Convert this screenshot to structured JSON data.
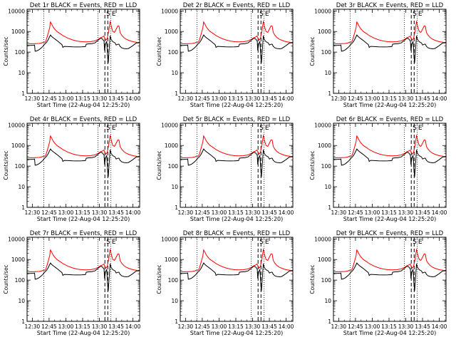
{
  "figure": {
    "xlabel": "Start Time (22-Aug-04 12:25:20)",
    "ylabel": "Counts/sec"
  },
  "chart_data": [
    {
      "type": "line",
      "title": "Det 1r BLACK = Events, RED = LLD",
      "dash_labels": [
        "S",
        "E"
      ]
    },
    {
      "type": "line",
      "title": "Det 2r BLACK = Events, RED = LLD",
      "dash_labels": [
        "S",
        "E"
      ]
    },
    {
      "type": "line",
      "title": "Det 3r BLACK = Events, RED = LLD",
      "dash_labels": [
        "S",
        "E"
      ]
    },
    {
      "type": "line",
      "title": "Det 4r BLACK = Events, RED = LLD",
      "dash_labels": [
        "S",
        "E"
      ]
    },
    {
      "type": "line",
      "title": "Det 5r BLACK = Events, RED = LLD",
      "dash_labels": [
        "S",
        "E"
      ]
    },
    {
      "type": "line",
      "title": "Det 6r BLACK = Events, RED = LLD",
      "dash_labels": [
        "S",
        "E"
      ]
    },
    {
      "type": "line",
      "title": "Det 7r BLACK = Events, RED = LLD",
      "dash_labels": [
        "S",
        "E"
      ]
    },
    {
      "type": "line",
      "title": "Det 8r BLACK = Events, RED = LLD",
      "dash_labels": [
        "S",
        "E"
      ]
    },
    {
      "type": "line",
      "title": "Det 9r BLACK = Events, RED = LLD",
      "dash_labels": [
        "S",
        "E"
      ]
    }
  ],
  "shared": {
    "x_ticks": [
      "12:30",
      "12:45",
      "13:00",
      "13:15",
      "13:30",
      "13:45",
      "14:00"
    ],
    "x_tick_minutes": [
      30,
      45,
      60,
      75,
      90,
      105,
      120
    ],
    "xlim_minutes": [
      25.3,
      126
    ],
    "y_scale": "log",
    "ylim": [
      1,
      12000
    ],
    "y_ticks": [
      "1",
      "10",
      "100",
      "1000",
      "10000"
    ],
    "y_tick_values": [
      1,
      10,
      100,
      1000,
      10000
    ],
    "dotted_lines_minutes": [
      40.2,
      88.7,
      100.3
    ],
    "dashed_lines_minutes": [
      94.9,
      97.5
    ],
    "red_color": "#ff0000",
    "black_color": "#000000",
    "series": [
      {
        "name": "LLD",
        "color": "#ff0000",
        "points": [
          [
            25.3,
            250
          ],
          [
            28,
            255
          ],
          [
            33,
            258
          ],
          [
            36,
            262
          ],
          [
            38,
            275
          ],
          [
            40,
            300
          ],
          [
            41.5,
            300
          ],
          [
            42.5,
            400
          ],
          [
            43.5,
            620
          ],
          [
            44.5,
            950
          ],
          [
            45.5,
            1500
          ],
          [
            46.2,
            2900
          ],
          [
            47,
            2500
          ],
          [
            48.5,
            1700
          ],
          [
            50,
            1300
          ],
          [
            52,
            1000
          ],
          [
            55,
            780
          ],
          [
            58,
            600
          ],
          [
            62,
            470
          ],
          [
            66,
            390
          ],
          [
            70,
            345
          ],
          [
            74,
            320
          ],
          [
            78,
            315
          ],
          [
            82,
            320
          ],
          [
            86,
            350
          ],
          [
            89,
            420
          ],
          [
            91,
            500
          ],
          [
            92.5,
            530
          ],
          [
            94,
            600
          ],
          [
            95.2,
            430
          ],
          [
            96,
            380
          ],
          [
            97,
            470
          ],
          [
            98.5,
            1200
          ],
          [
            99.6,
            3200
          ],
          [
            100.6,
            1800
          ],
          [
            102,
            1000
          ],
          [
            103.5,
            900
          ],
          [
            105,
            1300
          ],
          [
            106.5,
            1900
          ],
          [
            107.5,
            1800
          ],
          [
            108.5,
            900
          ],
          [
            110,
            650
          ],
          [
            112,
            500
          ],
          [
            114,
            420
          ],
          [
            117,
            360
          ],
          [
            120,
            320
          ],
          [
            123,
            300
          ],
          [
            126,
            280
          ]
        ]
      },
      {
        "name": "Events",
        "color": "#000000",
        "points": [
          [
            25.3,
            210
          ],
          [
            28,
            212
          ],
          [
            31,
            215
          ],
          [
            32,
            220
          ],
          [
            32.5,
            110
          ],
          [
            34,
            115
          ],
          [
            36,
            130
          ],
          [
            38,
            160
          ],
          [
            39.5,
            195
          ],
          [
            41,
            240
          ],
          [
            42.5,
            290
          ],
          [
            44,
            380
          ],
          [
            45.5,
            560
          ],
          [
            46.3,
            680
          ],
          [
            47,
            600
          ],
          [
            49,
            480
          ],
          [
            51,
            400
          ],
          [
            53,
            330
          ],
          [
            55,
            270
          ],
          [
            56.5,
            230
          ],
          [
            57.3,
            170
          ],
          [
            58.5,
            190
          ],
          [
            62,
            185
          ],
          [
            66,
            180
          ],
          [
            70,
            178
          ],
          [
            74,
            180
          ],
          [
            77.5,
            185
          ],
          [
            78.2,
            240
          ],
          [
            80,
            250
          ],
          [
            83,
            255
          ],
          [
            86,
            280
          ],
          [
            89,
            380
          ],
          [
            90.5,
            450
          ],
          [
            91.5,
            470
          ],
          [
            93,
            420
          ],
          [
            94.2,
            330
          ],
          [
            94.6,
            120
          ],
          [
            95.5,
            250
          ],
          [
            96.5,
            330
          ],
          [
            97,
            140
          ],
          [
            97.3,
            60
          ],
          [
            97.9,
            30
          ],
          [
            98.8,
            150
          ],
          [
            99.6,
            620
          ],
          [
            100.6,
            400
          ],
          [
            102,
            320
          ],
          [
            104,
            280
          ],
          [
            105,
            220
          ],
          [
            106.5,
            240
          ],
          [
            107.5,
            240
          ],
          [
            108.5,
            190
          ],
          [
            110,
            160
          ],
          [
            112,
            150
          ],
          [
            114,
            145
          ],
          [
            116,
            150
          ],
          [
            119,
            190
          ],
          [
            121,
            230
          ],
          [
            123,
            280
          ],
          [
            126,
            280
          ]
        ]
      }
    ]
  }
}
